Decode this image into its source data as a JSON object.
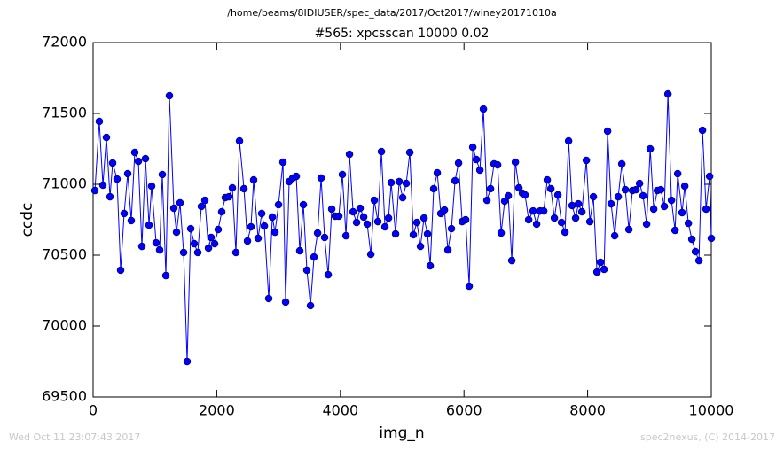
{
  "chart_data": {
    "type": "line",
    "suptitle": "/home/beams/8IDIUSER/spec_data/2017/Oct2017/winey20171010a",
    "title": "#565: xpcsscan 10000 0.02",
    "xlabel": "img_n",
    "ylabel": "ccdc",
    "timestamp": "Wed Oct 11 23:07:43 2017",
    "credit": "spec2nexus, (C) 2014-2017",
    "xlim": [
      0,
      10000
    ],
    "xticks": [
      0,
      2000,
      4000,
      6000,
      8000,
      10000
    ],
    "ylim": [
      69500,
      72000
    ],
    "yticks": [
      69500,
      70000,
      70500,
      71000,
      71500,
      72000
    ],
    "x": [
      29,
      100,
      158,
      215,
      273,
      316,
      387,
      445,
      502,
      560,
      617,
      674,
      732,
      789,
      847,
      904,
      947,
      1019,
      1076,
      1119,
      1177,
      1234,
      1306,
      1349,
      1406,
      1464,
      1521,
      1579,
      1636,
      1693,
      1751,
      1808,
      1866,
      1909,
      1966,
      2023,
      2081,
      2138,
      2196,
      2253,
      2310,
      2368,
      2440,
      2497,
      2554,
      2597,
      2669,
      2727,
      2770,
      2841,
      2899,
      2942,
      2999,
      3071,
      3114,
      3171,
      3229,
      3286,
      3343,
      3401,
      3458,
      3516,
      3573,
      3631,
      3688,
      3745,
      3803,
      3860,
      3918,
      3975,
      4032,
      4090,
      4147,
      4205,
      4262,
      4319,
      4377,
      4434,
      4492,
      4549,
      4606,
      4664,
      4721,
      4779,
      4822,
      4893,
      4951,
      5008,
      5066,
      5123,
      5180,
      5238,
      5295,
      5353,
      5410,
      5453,
      5510,
      5568,
      5625,
      5683,
      5740,
      5797,
      5855,
      5912,
      5970,
      6027,
      6084,
      6142,
      6199,
      6257,
      6314,
      6371,
      6429,
      6486,
      6544,
      6601,
      6658,
      6716,
      6773,
      6831,
      6888,
      6945,
      6988,
      7046,
      7118,
      7175,
      7232,
      7290,
      7347,
      7405,
      7462,
      7519,
      7577,
      7634,
      7692,
      7749,
      7806,
      7850,
      7907,
      7979,
      8036,
      8093,
      8151,
      8208,
      8266,
      8323,
      8380,
      8438,
      8495,
      8553,
      8610,
      8667,
      8725,
      8782,
      8840,
      8897,
      8954,
      9012,
      9069,
      9127,
      9184,
      9241,
      9299,
      9356,
      9414,
      9457,
      9528,
      9571,
      9629,
      9686,
      9744,
      9801,
      9858,
      9916,
      9973,
      10000
    ],
    "series": [
      {
        "name": "ccdc",
        "color": "#0000ff",
        "values": [
          70956,
          71444,
          70994,
          71331,
          70912,
          71150,
          71037,
          70394,
          70794,
          71075,
          70744,
          71225,
          71162,
          70562,
          71181,
          70712,
          70987,
          70587,
          70537,
          71069,
          70356,
          71625,
          70831,
          70662,
          70869,
          70519,
          69750,
          70687,
          70581,
          70519,
          70844,
          70887,
          70550,
          70625,
          70581,
          70681,
          70806,
          70906,
          70912,
          70975,
          70519,
          71306,
          70969,
          70600,
          70700,
          71031,
          70619,
          70794,
          70706,
          70194,
          70769,
          70662,
          70856,
          71156,
          70169,
          71019,
          71044,
          71056,
          70531,
          70856,
          70394,
          70144,
          70487,
          70656,
          71044,
          70625,
          70362,
          70825,
          70775,
          70775,
          71069,
          70637,
          71212,
          70806,
          70731,
          70831,
          70769,
          70719,
          70506,
          70887,
          70737,
          71231,
          70700,
          70762,
          71012,
          70650,
          71019,
          70906,
          71006,
          71225,
          70644,
          70731,
          70562,
          70762,
          70650,
          70425,
          70969,
          71081,
          70794,
          70819,
          70537,
          70687,
          71025,
          71150,
          70737,
          70750,
          70281,
          71262,
          71175,
          71100,
          71531,
          70887,
          70969,
          71144,
          71137,
          70656,
          70881,
          70919,
          70462,
          71156,
          70975,
          70937,
          70925,
          70750,
          70812,
          70719,
          70812,
          70812,
          71031,
          70969,
          70762,
          70925,
          70731,
          70662,
          71306,
          70850,
          70762,
          70862,
          70806,
          71169,
          70737,
          70912,
          70381,
          70450,
          70400,
          71375,
          70862,
          70637,
          70912,
          71144,
          70962,
          70681,
          70956,
          70962,
          71006,
          70919,
          70719,
          71250,
          70825,
          70956,
          70962,
          70844,
          71637,
          70887,
          70675,
          71075,
          70800,
          70987,
          70725,
          70612,
          70525,
          70462,
          71381,
          70825,
          71056,
          70619
        ]
      }
    ]
  }
}
